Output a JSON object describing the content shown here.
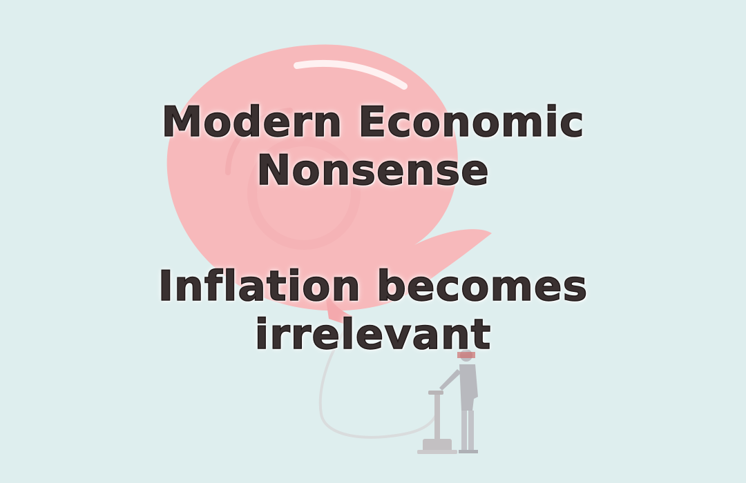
{
  "headline": {
    "line1": "Modern Economic",
    "line2": "Nonsense",
    "line3": "Inflation becomes",
    "line4": "irrelevant"
  },
  "colors": {
    "background": "#deeeee",
    "balloon": "#f7b9bb",
    "text": "#3a3131"
  },
  "icons": {
    "balloon": "balloon-icon",
    "pump": "hand-pump-icon",
    "person": "person-icon"
  }
}
